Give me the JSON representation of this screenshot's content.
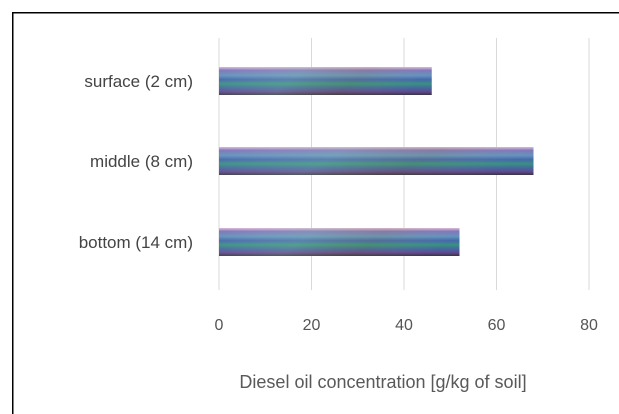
{
  "chart_data": {
    "type": "bar",
    "orientation": "horizontal",
    "categories": [
      "surface (2 cm)",
      "middle (8 cm)",
      "bottom (14 cm)"
    ],
    "values": [
      46,
      68,
      52
    ],
    "xlabel": "Diesel oil concentration [g/kg of soil]",
    "ylabel": "",
    "xlim": [
      0,
      80
    ],
    "xticks": [
      "0",
      "20",
      "40",
      "60",
      "80"
    ],
    "grid": true,
    "legend": "none",
    "colors": {
      "gridline": "#d9d9d9",
      "border": "#000000",
      "bar_base": "#3a6a8a"
    }
  }
}
